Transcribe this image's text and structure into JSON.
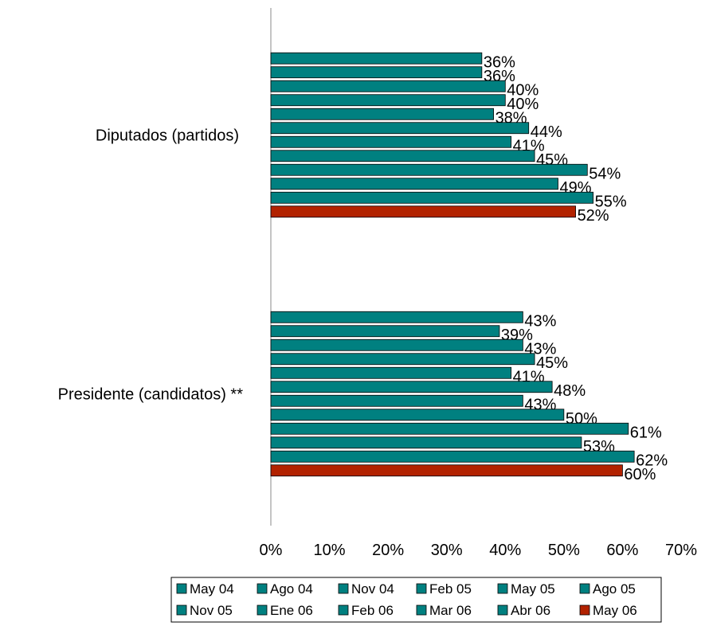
{
  "chart_data": {
    "type": "bar",
    "orientation": "horizontal",
    "categories": [
      "Diputados (partidos)",
      "Presidente (candidatos) **"
    ],
    "series": [
      {
        "name": "May 04",
        "color": "#008080",
        "values": [
          36,
          43
        ],
        "value_labels": [
          "36%",
          "43%"
        ]
      },
      {
        "name": "Ago 04",
        "color": "#008080",
        "values": [
          36,
          39
        ],
        "value_labels": [
          "36%",
          "39%"
        ]
      },
      {
        "name": "Nov 04",
        "color": "#008080",
        "values": [
          40,
          43
        ],
        "value_labels": [
          "40%",
          "43%"
        ]
      },
      {
        "name": "Feb 05",
        "color": "#008080",
        "values": [
          40,
          45
        ],
        "value_labels": [
          "40%",
          "45%"
        ]
      },
      {
        "name": "May 05",
        "color": "#008080",
        "values": [
          38,
          41
        ],
        "value_labels": [
          "38%",
          "41%"
        ]
      },
      {
        "name": "Ago 05",
        "color": "#008080",
        "values": [
          44,
          48
        ],
        "value_labels": [
          "44%",
          "48%"
        ]
      },
      {
        "name": "Nov 05",
        "color": "#008080",
        "values": [
          41,
          43
        ],
        "value_labels": [
          "41%",
          "43%"
        ]
      },
      {
        "name": "Ene 06",
        "color": "#008080",
        "values": [
          45,
          50
        ],
        "value_labels": [
          "45%",
          "50%"
        ]
      },
      {
        "name": "Feb 06",
        "color": "#008080",
        "values": [
          54,
          61
        ],
        "value_labels": [
          "54%",
          "61%"
        ]
      },
      {
        "name": "Mar 06",
        "color": "#008080",
        "values": [
          49,
          53
        ],
        "value_labels": [
          "49%",
          "53%"
        ]
      },
      {
        "name": "Abr 06",
        "color": "#008080",
        "values": [
          55,
          62
        ],
        "value_labels": [
          "55%",
          "62%"
        ]
      },
      {
        "name": "May 06",
        "color": "#b22200",
        "values": [
          52,
          60
        ],
        "value_labels": [
          "52%",
          "60%"
        ]
      }
    ],
    "xlim": [
      0,
      70
    ],
    "xticks": [
      {
        "value": 0,
        "label": "0%"
      },
      {
        "value": 10,
        "label": "10%"
      },
      {
        "value": 20,
        "label": "20%"
      },
      {
        "value": 30,
        "label": "30%"
      },
      {
        "value": 40,
        "label": "40%"
      },
      {
        "value": 50,
        "label": "50%"
      },
      {
        "value": 60,
        "label": "60%"
      },
      {
        "value": 70,
        "label": "70%"
      }
    ],
    "grid": false,
    "legend": "bottom"
  }
}
